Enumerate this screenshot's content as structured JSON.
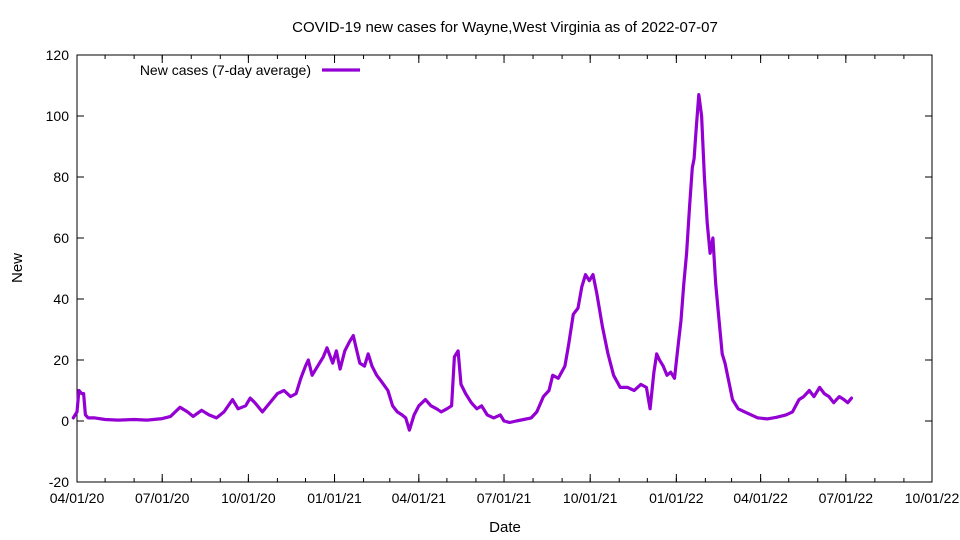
{
  "chart_data": {
    "type": "line",
    "title": "COVID-19 new cases for Wayne,West Virginia as of 2022-07-07",
    "xlabel": "Date",
    "ylabel": "New",
    "ylim": [
      -20,
      120
    ],
    "xlim": [
      "2020-04-01",
      "2022-10-01"
    ],
    "yticks": [
      -20,
      0,
      20,
      40,
      60,
      80,
      100,
      120
    ],
    "xticks": [
      {
        "date": "2020-04-01",
        "label": "04/01/20"
      },
      {
        "date": "2020-07-01",
        "label": "07/01/20"
      },
      {
        "date": "2020-10-01",
        "label": "10/01/20"
      },
      {
        "date": "2021-01-01",
        "label": "01/01/21"
      },
      {
        "date": "2021-04-01",
        "label": "04/01/21"
      },
      {
        "date": "2021-07-01",
        "label": "07/01/21"
      },
      {
        "date": "2021-10-01",
        "label": "10/01/21"
      },
      {
        "date": "2022-01-01",
        "label": "01/01/22"
      },
      {
        "date": "2022-04-01",
        "label": "04/01/22"
      },
      {
        "date": "2022-07-01",
        "label": "07/01/22"
      },
      {
        "date": "2022-10-01",
        "label": "10/01/22"
      }
    ],
    "legend_position": "top-left",
    "grid": false,
    "series": [
      {
        "name": "New cases (7-day average)",
        "color": "#9400d3",
        "points": [
          [
            "2020-03-28",
            1
          ],
          [
            "2020-04-01",
            3
          ],
          [
            "2020-04-03",
            10
          ],
          [
            "2020-04-06",
            9
          ],
          [
            "2020-04-08",
            9
          ],
          [
            "2020-04-10",
            2
          ],
          [
            "2020-04-13",
            1
          ],
          [
            "2020-04-20",
            1
          ],
          [
            "2020-05-01",
            0.5
          ],
          [
            "2020-05-15",
            0.3
          ],
          [
            "2020-06-01",
            0.5
          ],
          [
            "2020-06-15",
            0.3
          ],
          [
            "2020-07-01",
            0.8
          ],
          [
            "2020-07-10",
            1.5
          ],
          [
            "2020-07-20",
            4.5
          ],
          [
            "2020-07-28",
            3
          ],
          [
            "2020-08-03",
            1.5
          ],
          [
            "2020-08-12",
            3.5
          ],
          [
            "2020-08-20",
            2
          ],
          [
            "2020-08-28",
            1
          ],
          [
            "2020-09-05",
            3
          ],
          [
            "2020-09-14",
            7
          ],
          [
            "2020-09-20",
            4
          ],
          [
            "2020-09-28",
            5
          ],
          [
            "2020-10-03",
            7.5
          ],
          [
            "2020-10-08",
            6
          ],
          [
            "2020-10-16",
            3
          ],
          [
            "2020-10-24",
            6
          ],
          [
            "2020-11-01",
            9
          ],
          [
            "2020-11-08",
            10
          ],
          [
            "2020-11-15",
            8
          ],
          [
            "2020-11-21",
            9
          ],
          [
            "2020-11-26",
            14
          ],
          [
            "2020-12-01",
            18
          ],
          [
            "2020-12-04",
            20
          ],
          [
            "2020-12-08",
            15
          ],
          [
            "2020-12-14",
            18
          ],
          [
            "2020-12-20",
            21
          ],
          [
            "2020-12-24",
            24
          ],
          [
            "2020-12-30",
            19
          ],
          [
            "2021-01-03",
            23
          ],
          [
            "2021-01-07",
            17
          ],
          [
            "2021-01-12",
            23
          ],
          [
            "2021-01-17",
            26
          ],
          [
            "2021-01-21",
            28
          ],
          [
            "2021-01-24",
            24
          ],
          [
            "2021-01-28",
            19
          ],
          [
            "2021-02-02",
            18
          ],
          [
            "2021-02-06",
            22
          ],
          [
            "2021-02-10",
            18
          ],
          [
            "2021-02-15",
            15
          ],
          [
            "2021-02-20",
            13
          ],
          [
            "2021-02-27",
            10
          ],
          [
            "2021-03-04",
            5
          ],
          [
            "2021-03-09",
            3
          ],
          [
            "2021-03-14",
            2
          ],
          [
            "2021-03-18",
            1
          ],
          [
            "2021-03-22",
            -3
          ],
          [
            "2021-03-27",
            2
          ],
          [
            "2021-04-01",
            5
          ],
          [
            "2021-04-08",
            7
          ],
          [
            "2021-04-14",
            5
          ],
          [
            "2021-04-20",
            4
          ],
          [
            "2021-04-25",
            3
          ],
          [
            "2021-05-01",
            4
          ],
          [
            "2021-05-06",
            5
          ],
          [
            "2021-05-09",
            21
          ],
          [
            "2021-05-13",
            23
          ],
          [
            "2021-05-16",
            12
          ],
          [
            "2021-05-21",
            9
          ],
          [
            "2021-05-27",
            6
          ],
          [
            "2021-06-02",
            4
          ],
          [
            "2021-06-07",
            5
          ],
          [
            "2021-06-13",
            2
          ],
          [
            "2021-06-20",
            1
          ],
          [
            "2021-06-27",
            2
          ],
          [
            "2021-07-01",
            0
          ],
          [
            "2021-07-07",
            -0.5
          ],
          [
            "2021-07-14",
            0
          ],
          [
            "2021-07-22",
            0.5
          ],
          [
            "2021-07-30",
            1
          ],
          [
            "2021-08-05",
            3
          ],
          [
            "2021-08-12",
            8
          ],
          [
            "2021-08-18",
            10
          ],
          [
            "2021-08-22",
            15
          ],
          [
            "2021-08-28",
            14
          ],
          [
            "2021-09-04",
            18
          ],
          [
            "2021-09-08",
            25
          ],
          [
            "2021-09-13",
            35
          ],
          [
            "2021-09-18",
            37
          ],
          [
            "2021-09-22",
            44
          ],
          [
            "2021-09-26",
            48
          ],
          [
            "2021-09-30",
            46
          ],
          [
            "2021-10-04",
            48
          ],
          [
            "2021-10-08",
            42
          ],
          [
            "2021-10-14",
            31
          ],
          [
            "2021-10-20",
            22
          ],
          [
            "2021-10-26",
            15
          ],
          [
            "2021-11-02",
            11
          ],
          [
            "2021-11-10",
            11
          ],
          [
            "2021-11-17",
            10
          ],
          [
            "2021-11-24",
            12
          ],
          [
            "2021-11-30",
            11
          ],
          [
            "2021-12-04",
            4
          ],
          [
            "2021-12-08",
            16
          ],
          [
            "2021-12-11",
            22
          ],
          [
            "2021-12-14",
            20
          ],
          [
            "2021-12-18",
            18
          ],
          [
            "2021-12-22",
            15
          ],
          [
            "2021-12-26",
            16
          ],
          [
            "2021-12-30",
            14
          ],
          [
            "2022-01-03",
            25
          ],
          [
            "2022-01-06",
            33
          ],
          [
            "2022-01-09",
            45
          ],
          [
            "2022-01-12",
            55
          ],
          [
            "2022-01-15",
            70
          ],
          [
            "2022-01-18",
            83
          ],
          [
            "2022-01-20",
            86
          ],
          [
            "2022-01-22",
            95
          ],
          [
            "2022-01-25",
            107
          ],
          [
            "2022-01-28",
            100
          ],
          [
            "2022-01-31",
            80
          ],
          [
            "2022-02-03",
            65
          ],
          [
            "2022-02-06",
            55
          ],
          [
            "2022-02-09",
            60
          ],
          [
            "2022-02-12",
            45
          ],
          [
            "2022-02-15",
            35
          ],
          [
            "2022-02-19",
            22
          ],
          [
            "2022-02-22",
            19
          ],
          [
            "2022-02-26",
            13
          ],
          [
            "2022-03-02",
            7
          ],
          [
            "2022-03-08",
            4
          ],
          [
            "2022-03-15",
            3
          ],
          [
            "2022-03-22",
            2
          ],
          [
            "2022-03-29",
            1
          ],
          [
            "2022-04-08",
            0.7
          ],
          [
            "2022-04-18",
            1.2
          ],
          [
            "2022-04-28",
            2
          ],
          [
            "2022-05-05",
            3
          ],
          [
            "2022-05-12",
            7
          ],
          [
            "2022-05-17",
            8
          ],
          [
            "2022-05-23",
            10
          ],
          [
            "2022-05-28",
            8
          ],
          [
            "2022-06-03",
            11
          ],
          [
            "2022-06-08",
            9
          ],
          [
            "2022-06-13",
            8
          ],
          [
            "2022-06-18",
            6
          ],
          [
            "2022-06-24",
            8
          ],
          [
            "2022-06-29",
            7
          ],
          [
            "2022-07-03",
            6
          ],
          [
            "2022-07-07",
            7.5
          ]
        ]
      }
    ]
  }
}
